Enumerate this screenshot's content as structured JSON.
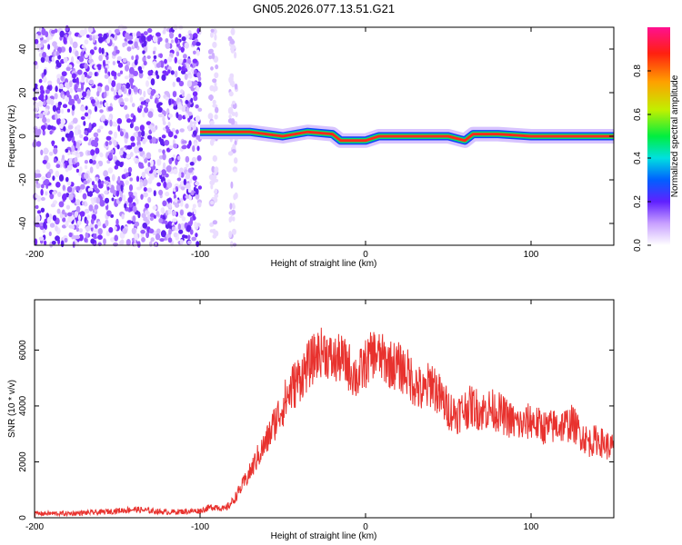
{
  "title": "GN05.2026.077.13.51.G21",
  "chart_data": [
    {
      "type": "heatmap",
      "xlabel": "Height of straight line (km)",
      "ylabel": "Frequency (Hz)",
      "xlim": [
        -200,
        150
      ],
      "ylim": [
        -50,
        50
      ],
      "xticks": [
        -200,
        -100,
        0,
        100
      ],
      "yticks": [
        -40,
        -20,
        0,
        20,
        40
      ],
      "colorbar": {
        "label": "Normalized spectral amplitude",
        "range": [
          0,
          1
        ],
        "ticks": [
          0.0,
          0.2,
          0.4,
          0.6,
          0.8
        ]
      },
      "noise_region_x": [
        -200,
        -100
      ],
      "scattered_columns_x": [
        -92,
        -80
      ],
      "ridge": [
        {
          "x": -100,
          "y": 2
        },
        {
          "x": -70,
          "y": 2
        },
        {
          "x": -60,
          "y": 1
        },
        {
          "x": -50,
          "y": 0
        },
        {
          "x": -35,
          "y": 2
        },
        {
          "x": -20,
          "y": 1
        },
        {
          "x": -15,
          "y": -2
        },
        {
          "x": 0,
          "y": -2
        },
        {
          "x": 8,
          "y": 0
        },
        {
          "x": 50,
          "y": 0
        },
        {
          "x": 60,
          "y": -2
        },
        {
          "x": 65,
          "y": 1
        },
        {
          "x": 80,
          "y": 1
        },
        {
          "x": 100,
          "y": 0
        },
        {
          "x": 150,
          "y": 0
        }
      ]
    },
    {
      "type": "line",
      "xlabel": "Height of straight line (km)",
      "ylabel": "SNR (10 * v/v)",
      "xlim": [
        -200,
        150
      ],
      "ylim": [
        0,
        7800
      ],
      "xticks": [
        -200,
        -100,
        0,
        100
      ],
      "yticks": [
        0,
        2000,
        4000,
        6000
      ],
      "color": "#e8322e",
      "series": [
        {
          "x": [
            -200,
            -180,
            -160,
            -140,
            -120,
            -100,
            -95,
            -90,
            -85,
            -80,
            -75,
            -70,
            -65,
            -60,
            -55,
            -50,
            -45,
            -40,
            -35,
            -30,
            -25,
            -20,
            -15,
            -10,
            -5,
            0,
            5,
            10,
            15,
            20,
            25,
            30,
            35,
            40,
            45,
            50,
            55,
            60,
            65,
            70,
            75,
            80,
            85,
            90,
            95,
            100,
            105,
            110,
            115,
            120,
            125,
            130,
            135,
            140,
            145,
            150
          ],
          "values": [
            150,
            150,
            200,
            300,
            200,
            250,
            350,
            400,
            300,
            600,
            1100,
            1600,
            2200,
            2700,
            3400,
            4000,
            4600,
            5000,
            5400,
            5800,
            6000,
            5600,
            5700,
            5400,
            5000,
            5500,
            5900,
            5700,
            5500,
            5400,
            5200,
            4800,
            4400,
            4900,
            4300,
            3900,
            3700,
            3900,
            4000,
            3800,
            3900,
            3800,
            3600,
            3400,
            3300,
            3500,
            3300,
            3200,
            3300,
            3300,
            3400,
            3000,
            2700,
            2800,
            2600,
            2500
          ]
        }
      ]
    }
  ]
}
